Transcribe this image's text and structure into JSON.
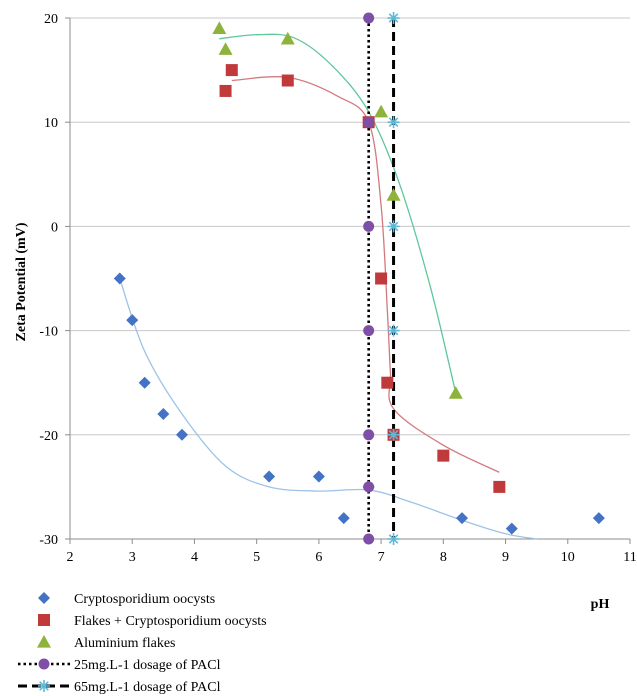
{
  "chart_data": {
    "type": "scatter",
    "title": "",
    "xlabel": "pH",
    "ylabel": "Zeta Potential (mV)",
    "xlim": [
      2,
      11
    ],
    "ylim": [
      -30,
      20
    ],
    "x_ticks": [
      2,
      3,
      4,
      5,
      6,
      7,
      8,
      9,
      10,
      11
    ],
    "y_ticks": [
      -30,
      -20,
      -10,
      0,
      10,
      20
    ],
    "grid": true,
    "legend_position": "bottom-left",
    "series": [
      {
        "name": "Cryptosporidium oocysts",
        "marker": "diamond",
        "color": "#4472C4",
        "trend_color": "#9DC3E6",
        "points": [
          [
            2.8,
            -5
          ],
          [
            3.0,
            -9
          ],
          [
            3.2,
            -15
          ],
          [
            3.5,
            -18
          ],
          [
            3.8,
            -20
          ],
          [
            5.2,
            -24
          ],
          [
            6.0,
            -24
          ],
          [
            6.4,
            -28
          ],
          [
            6.8,
            -25
          ],
          [
            8.3,
            -28
          ],
          [
            9.1,
            -29
          ],
          [
            10.5,
            -28
          ]
        ],
        "trend": [
          [
            2.8,
            -5
          ],
          [
            3.2,
            -12
          ],
          [
            3.8,
            -18
          ],
          [
            4.5,
            -23
          ],
          [
            5.2,
            -25
          ],
          [
            6.0,
            -25.4
          ],
          [
            6.8,
            -25.3
          ],
          [
            7.5,
            -26.5
          ],
          [
            8.3,
            -28.2
          ],
          [
            9.0,
            -29.5
          ],
          [
            9.5,
            -30
          ]
        ]
      },
      {
        "name": "Flakes + Cryptosporidium oocysts",
        "marker": "square",
        "color": "#C0393B",
        "trend_color": "#D17A7E",
        "points": [
          [
            4.5,
            13
          ],
          [
            4.6,
            15
          ],
          [
            5.5,
            14
          ],
          [
            6.8,
            10
          ],
          [
            7.0,
            -5
          ],
          [
            7.1,
            -15
          ],
          [
            7.2,
            -20
          ],
          [
            8.0,
            -22
          ],
          [
            8.9,
            -25
          ]
        ],
        "trend": [
          [
            4.6,
            14
          ],
          [
            5.5,
            14.3
          ],
          [
            6.3,
            12.5
          ],
          [
            6.8,
            10
          ],
          [
            7.0,
            2
          ],
          [
            7.1,
            -8
          ],
          [
            7.15,
            -14
          ],
          [
            7.2,
            -17.5
          ],
          [
            8.0,
            -21
          ],
          [
            8.9,
            -23.6
          ]
        ]
      },
      {
        "name": "Aluminium flakes",
        "marker": "triangle",
        "color": "#8DB33A",
        "trend_color": "#5FC79A",
        "points": [
          [
            4.4,
            19
          ],
          [
            4.5,
            17
          ],
          [
            5.5,
            18
          ],
          [
            7.0,
            11
          ],
          [
            7.2,
            3
          ],
          [
            8.2,
            -16
          ]
        ],
        "trend": [
          [
            4.4,
            18
          ],
          [
            5.0,
            18.4
          ],
          [
            5.6,
            18.1
          ],
          [
            6.2,
            15.5
          ],
          [
            6.8,
            11
          ],
          [
            7.3,
            4
          ],
          [
            7.8,
            -6
          ],
          [
            8.2,
            -16
          ]
        ]
      },
      {
        "name": "25mg.L-1 dosage of PACl",
        "marker": "circle",
        "color": "#7F4FA8",
        "line_style": "dotted",
        "points": [
          [
            6.8,
            20
          ],
          [
            6.8,
            10
          ],
          [
            6.8,
            0
          ],
          [
            6.8,
            -10
          ],
          [
            6.8,
            -20
          ],
          [
            6.8,
            -25
          ],
          [
            6.8,
            -30
          ]
        ]
      },
      {
        "name": "65mg.L-1 dosage of PACl",
        "marker": "star",
        "color": "#5DB8D8",
        "line_style": "dashed",
        "points": [
          [
            7.2,
            20
          ],
          [
            7.2,
            10
          ],
          [
            7.2,
            0
          ],
          [
            7.2,
            -10
          ],
          [
            7.2,
            -20
          ],
          [
            7.2,
            -30
          ]
        ]
      }
    ]
  }
}
